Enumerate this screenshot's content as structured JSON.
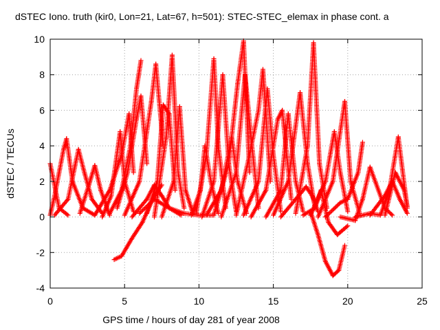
{
  "chart_data": {
    "type": "scatter",
    "title": "dSTEC Iono. truth (kir0, Lon=21, Lat=67, h=501): STEC-STEC_elemax in phase cont. a",
    "xlabel": "GPS time / hours of day 281 of year 2008",
    "ylabel": "dSTEC  / TECUs",
    "xlim": [
      0,
      25
    ],
    "ylim": [
      -4,
      10
    ],
    "x_ticks": [
      0,
      5,
      10,
      15,
      20,
      25
    ],
    "y_ticks": [
      -4,
      -2,
      0,
      2,
      4,
      6,
      8,
      10
    ],
    "grid": true,
    "marker": "+",
    "color": "#ff0000",
    "series_arcs": [
      {
        "x": [
          0.0,
          0.6,
          1.2
        ],
        "y": [
          3.0,
          0.5,
          0.1
        ]
      },
      {
        "x": [
          0.0,
          0.3,
          0.6,
          0.9,
          1.1,
          1.5,
          2.2,
          3.0
        ],
        "y": [
          0.1,
          1.2,
          2.5,
          3.8,
          4.4,
          2.0,
          0.5,
          0.1
        ]
      },
      {
        "x": [
          0.3,
          1.2,
          1.9,
          2.3,
          2.8,
          3.5
        ],
        "y": [
          0.1,
          1.0,
          3.8,
          2.5,
          1.0,
          0.2
        ]
      },
      {
        "x": [
          2.0,
          2.6,
          3.0,
          3.4,
          4.0
        ],
        "y": [
          0.2,
          1.8,
          2.9,
          1.5,
          0.1
        ]
      },
      {
        "x": [
          3.5,
          4.1,
          4.7,
          5.0,
          5.6
        ],
        "y": [
          0.0,
          1.2,
          4.8,
          2.0,
          0.3
        ]
      },
      {
        "x": [
          3.0,
          4.0,
          4.8,
          5.3,
          5.6
        ],
        "y": [
          0.1,
          1.5,
          3.5,
          5.8,
          2.5
        ]
      },
      {
        "x": [
          4.0,
          4.8,
          5.4,
          5.8,
          6.1
        ],
        "y": [
          0.2,
          1.5,
          4.0,
          7.2,
          8.8
        ]
      },
      {
        "x": [
          4.5,
          5.2,
          5.8,
          6.1,
          6.5
        ],
        "y": [
          0.5,
          2.5,
          5.5,
          6.8,
          3.0
        ]
      },
      {
        "x": [
          4.3,
          4.8,
          5.5,
          6.2,
          7.0,
          7.5
        ],
        "y": [
          -2.4,
          -2.2,
          -1.2,
          -0.3,
          1.2,
          1.8
        ]
      },
      {
        "x": [
          5.0,
          6.0,
          6.8,
          7.1,
          7.6
        ],
        "y": [
          0.1,
          2.0,
          6.5,
          8.6,
          4.0
        ]
      },
      {
        "x": [
          5.5,
          6.5,
          7.0,
          7.5,
          8.0,
          8.8
        ],
        "y": [
          0.0,
          1.0,
          1.8,
          1.2,
          0.5,
          0.1
        ]
      },
      {
        "x": [
          6.5,
          7.2,
          7.6,
          8.0,
          8.4
        ],
        "y": [
          0.2,
          2.0,
          6.3,
          5.8,
          1.5
        ]
      },
      {
        "x": [
          7.0,
          7.8,
          8.2,
          8.6,
          9.0
        ],
        "y": [
          0.0,
          4.5,
          9.1,
          2.5,
          0.5
        ]
      },
      {
        "x": [
          7.5,
          8.3,
          8.7,
          9.1,
          9.6
        ],
        "y": [
          0.0,
          2.0,
          6.2,
          1.5,
          0.2
        ]
      },
      {
        "x": [
          6.0,
          7.0,
          8.0,
          9.0,
          10.0,
          11.0
        ],
        "y": [
          0.2,
          1.0,
          0.5,
          0.2,
          0.1,
          0.1
        ]
      },
      {
        "x": [
          9.5,
          10.1,
          10.4,
          10.8,
          11.3
        ],
        "y": [
          0.1,
          1.5,
          4.0,
          2.0,
          0.2
        ]
      },
      {
        "x": [
          9.8,
          10.5,
          11.0,
          11.3,
          11.8
        ],
        "y": [
          0.2,
          3.5,
          8.9,
          4.0,
          0.5
        ]
      },
      {
        "x": [
          10.2,
          11.0,
          11.6,
          12.0,
          12.5
        ],
        "y": [
          0.0,
          2.0,
          8.0,
          3.0,
          0.3
        ]
      },
      {
        "x": [
          10.5,
          11.5,
          12.2,
          12.6,
          13.2
        ],
        "y": [
          0.1,
          1.5,
          4.5,
          2.0,
          0.2
        ]
      },
      {
        "x": [
          11.0,
          12.0,
          12.6,
          13.0,
          13.4
        ],
        "y": [
          0.1,
          3.0,
          7.5,
          9.9,
          2.5
        ]
      },
      {
        "x": [
          11.5,
          12.5,
          13.1,
          13.5,
          14.0
        ],
        "y": [
          0.0,
          2.5,
          8.0,
          4.5,
          0.5
        ]
      },
      {
        "x": [
          12.5,
          13.4,
          14.0,
          14.3,
          14.8
        ],
        "y": [
          0.1,
          3.5,
          6.0,
          8.3,
          2.0
        ]
      },
      {
        "x": [
          13.0,
          14.0,
          14.6,
          15.0,
          15.5
        ],
        "y": [
          0.1,
          2.0,
          7.2,
          3.5,
          0.3
        ]
      },
      {
        "x": [
          13.5,
          14.5,
          15.3,
          15.6,
          16.2
        ],
        "y": [
          0.0,
          1.5,
          5.5,
          6.0,
          1.0
        ]
      },
      {
        "x": [
          14.5,
          15.5,
          16.0,
          16.5,
          17.0
        ],
        "y": [
          0.0,
          1.5,
          5.8,
          2.0,
          0.3
        ]
      },
      {
        "x": [
          15.0,
          16.0,
          16.8,
          17.3,
          17.8
        ],
        "y": [
          0.1,
          2.0,
          7.0,
          3.0,
          0.5
        ]
      },
      {
        "x": [
          15.5,
          16.5,
          17.2,
          17.6,
          18.0
        ],
        "y": [
          0.0,
          1.0,
          1.7,
          1.2,
          0.3
        ]
      },
      {
        "x": [
          16.5,
          17.3,
          17.7,
          18.1,
          18.6
        ],
        "y": [
          0.2,
          4.0,
          9.8,
          3.0,
          0.5
        ]
      },
      {
        "x": [
          17.0,
          17.8,
          18.2,
          18.7,
          19.3,
          20.0
        ],
        "y": [
          0.1,
          0.5,
          1.5,
          -0.3,
          -1.0,
          -0.5
        ]
      },
      {
        "x": [
          17.5,
          18.0,
          18.5,
          19.0,
          19.4,
          19.8
        ],
        "y": [
          0.3,
          -1.0,
          -2.5,
          -3.3,
          -3.0,
          -1.6
        ]
      },
      {
        "x": [
          17.5,
          18.5,
          19.1,
          19.5,
          20.0
        ],
        "y": [
          0.1,
          2.0,
          4.8,
          2.5,
          0.3
        ]
      },
      {
        "x": [
          18.0,
          19.0,
          19.8,
          20.2,
          20.8
        ],
        "y": [
          0.0,
          2.0,
          6.5,
          2.0,
          0.2
        ]
      },
      {
        "x": [
          18.5,
          19.5,
          20.0,
          20.7,
          21.0
        ],
        "y": [
          0.0,
          0.8,
          1.0,
          2.5,
          4.2
        ]
      },
      {
        "x": [
          19.5,
          20.5,
          21.0,
          21.5,
          22.5,
          23.0
        ],
        "y": [
          0.0,
          -0.2,
          1.0,
          2.8,
          0.5,
          0.1
        ]
      },
      {
        "x": [
          20.5,
          21.5,
          22.2,
          22.8,
          23.4,
          24.0
        ],
        "y": [
          0.0,
          0.2,
          0.1,
          1.5,
          4.5,
          0.5
        ]
      },
      {
        "x": [
          21.5,
          22.5,
          23.0,
          23.5,
          24.0
        ],
        "y": [
          0.1,
          1.2,
          2.0,
          1.0,
          0.2
        ]
      },
      {
        "x": [
          22.5,
          23.2,
          23.8,
          24.0
        ],
        "y": [
          0.1,
          2.5,
          1.5,
          0.6
        ]
      }
    ]
  }
}
